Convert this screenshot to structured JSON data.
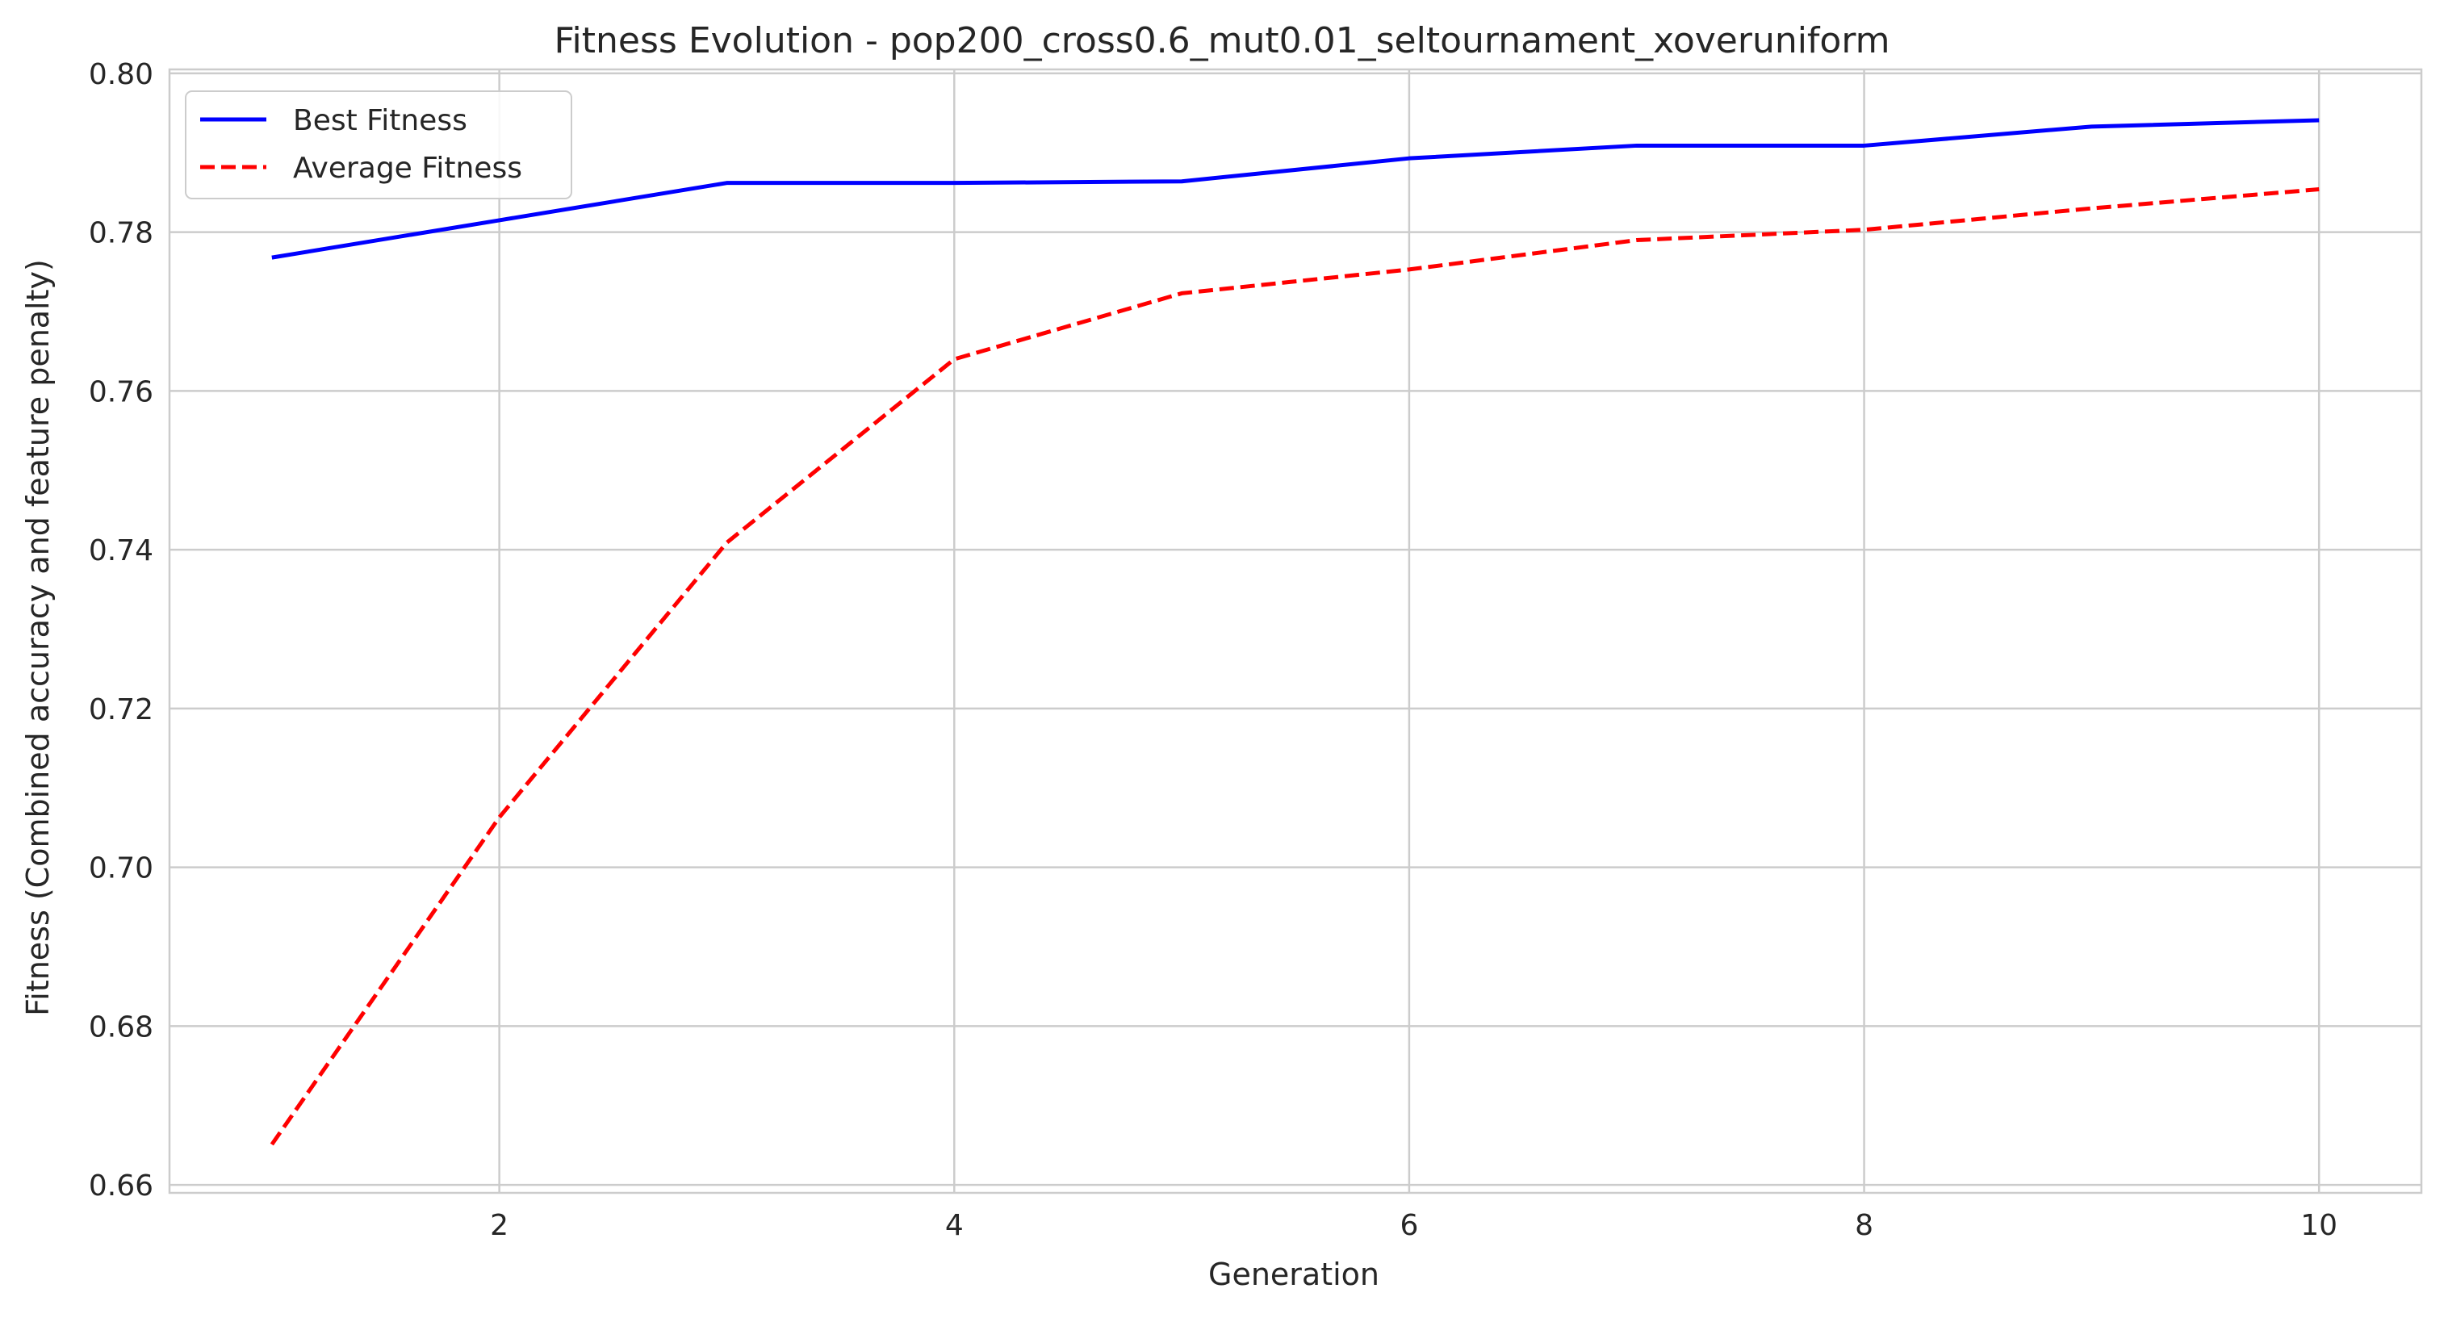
{
  "chart_data": {
    "type": "line",
    "title": "Fitness Evolution - pop200_cross0.6_mut0.01_seltournament_xoveruniform",
    "xlabel": "Generation",
    "ylabel": "Fitness (Combined accuracy and feature penalty)",
    "x": [
      1,
      2,
      3,
      4,
      5,
      6,
      7,
      8,
      9,
      10
    ],
    "xlim": [
      0.55,
      10.45
    ],
    "ylim": [
      0.659,
      0.8005
    ],
    "xticks": [
      2,
      4,
      6,
      8,
      10
    ],
    "xtick_labels": [
      "2",
      "4",
      "6",
      "8",
      "10"
    ],
    "yticks": [
      0.66,
      0.68,
      0.7,
      0.72,
      0.74,
      0.76,
      0.78,
      0.8
    ],
    "ytick_labels": [
      "0.66",
      "0.68",
      "0.70",
      "0.72",
      "0.74",
      "0.76",
      "0.78",
      "0.80"
    ],
    "grid": true,
    "legend_position": "top-left",
    "series": [
      {
        "name": "Best Fitness",
        "color": "#0000ff",
        "style": "solid",
        "values": [
          0.7768,
          0.7815,
          0.7862,
          0.7862,
          0.7864,
          0.7893,
          0.7909,
          0.7909,
          0.7933,
          0.7941
        ]
      },
      {
        "name": "Average Fitness",
        "color": "#ff0000",
        "style": "dashed",
        "values": [
          0.6651,
          0.7063,
          0.7409,
          0.764,
          0.7723,
          0.7753,
          0.779,
          0.7803,
          0.783,
          0.7854
        ]
      }
    ]
  }
}
